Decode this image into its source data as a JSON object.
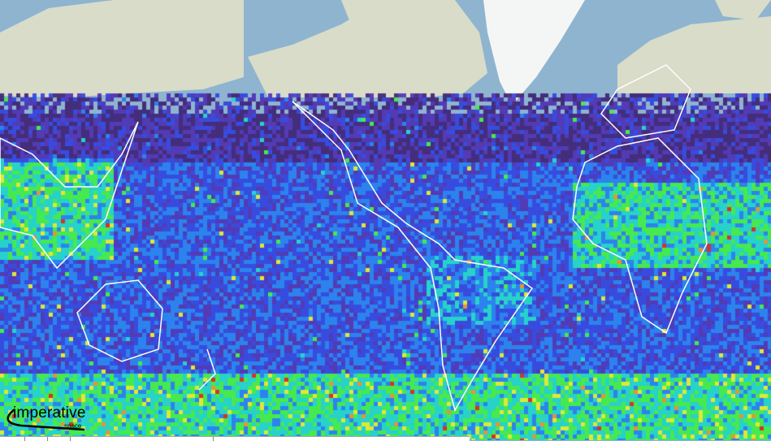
{
  "map": {
    "basemap_colors": {
      "ocean": "#8fb4d0",
      "land": "#d8dcc8",
      "ice": "#f4f6f6",
      "borders": "#ffffff"
    },
    "overlay_colorscale": [
      "#3a1a6e",
      "#4a2ab0",
      "#2b3ee0",
      "#1f7cf0",
      "#19d6c8",
      "#3cf03c",
      "#e8f020",
      "#f09020",
      "#e02010"
    ]
  },
  "logo": {
    "main": "imperative",
    "sub": "space"
  }
}
